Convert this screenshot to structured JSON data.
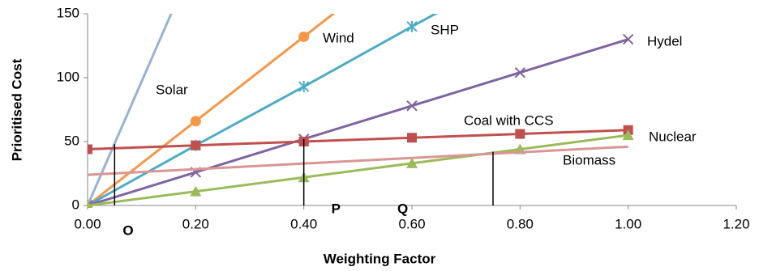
{
  "chart_data": {
    "type": "line",
    "xlabel": "Weighting Factor",
    "ylabel": "Prioritised Cost",
    "xlim": [
      0,
      1.2
    ],
    "ylim": [
      0,
      150
    ],
    "xticks": [
      {
        "value": 0,
        "label": "0.00"
      },
      {
        "value": 0.2,
        "label": "0.20"
      },
      {
        "value": 0.4,
        "label": "0.40"
      },
      {
        "value": 0.6,
        "label": "0.60"
      },
      {
        "value": 0.8,
        "label": "0.80"
      },
      {
        "value": 1.0,
        "label": "1.00"
      },
      {
        "value": 1.2,
        "label": "1.20"
      }
    ],
    "yticks": [
      0,
      50,
      100,
      150
    ],
    "grid": false,
    "series": [
      {
        "name": "Solar",
        "color": "#95b3d7",
        "marker": "none",
        "x": [
          0,
          0.2
        ],
        "values": [
          0,
          194
        ]
      },
      {
        "name": "Wind",
        "color": "#f79646",
        "marker": "circle",
        "x": [
          0,
          0.2,
          0.4,
          0.6
        ],
        "values": [
          0,
          66,
          132,
          198
        ]
      },
      {
        "name": "SHP",
        "color": "#4bacc6",
        "marker": "star",
        "x": [
          0,
          0.2,
          0.4,
          0.6,
          0.8
        ],
        "values": [
          0,
          47,
          93,
          140,
          186
        ]
      },
      {
        "name": "Hydel",
        "color": "#8064a2",
        "marker": "x",
        "x": [
          0,
          0.2,
          0.4,
          0.6,
          0.8,
          1.0
        ],
        "values": [
          0,
          26,
          52,
          78,
          104,
          130
        ]
      },
      {
        "name": "Coal with CCS",
        "color": "#c0504d",
        "marker": "square",
        "x": [
          0,
          0.2,
          0.4,
          0.6,
          0.8,
          1.0
        ],
        "values": [
          44,
          47,
          50,
          53,
          56,
          59
        ]
      },
      {
        "name": "Nuclear",
        "color": "#9bbb59",
        "marker": "triangle",
        "x": [
          0,
          0.2,
          0.4,
          0.6,
          0.8,
          1.0
        ],
        "values": [
          0,
          11,
          22,
          33,
          44,
          55
        ]
      },
      {
        "name": "Biomass",
        "color": "#d99694",
        "marker": "none",
        "x": [
          0,
          0.2,
          0.4,
          0.6,
          0.8,
          1.0
        ],
        "values": [
          24,
          28.4,
          32.8,
          37.2,
          41.6,
          46
        ]
      }
    ],
    "annotations": [
      {
        "text": "O",
        "x": 0.05,
        "y": 48
      },
      {
        "text": "P",
        "x": 0.4,
        "y": 52
      },
      {
        "text": "Q",
        "x": 0.75,
        "y": 42
      }
    ]
  }
}
